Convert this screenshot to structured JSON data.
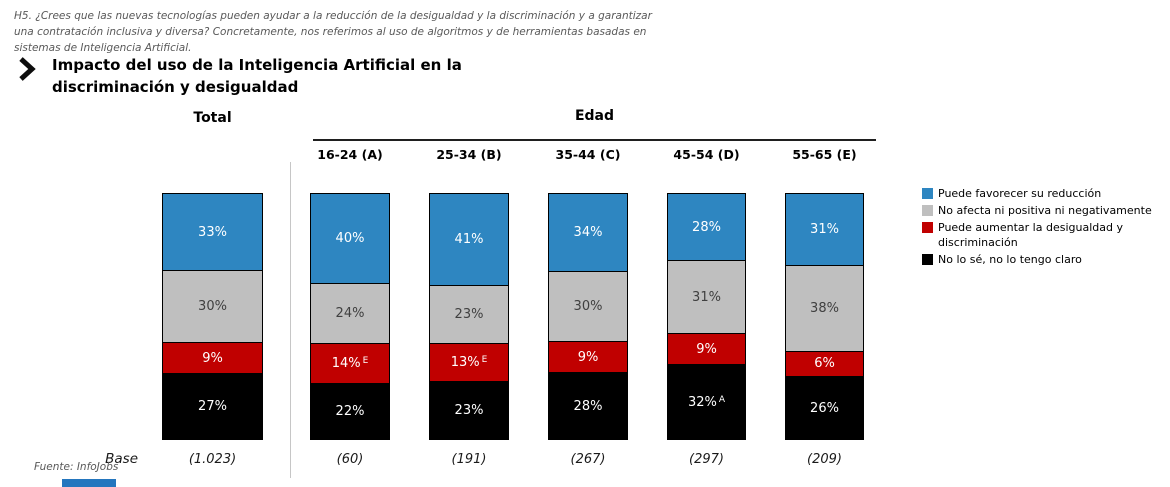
{
  "page": {
    "survey_note_lines": [
      "H5. ¿Crees que las nuevas tecnologías pueden ayudar a la reducción de la desigualdad y la discriminación y a garantizar",
      "una contratación inclusiva y diversa? Concretamente, nos referimos al uso de algoritmos y de herramientas basadas en",
      "sistemas de Inteligencia Artificial."
    ],
    "title_lines": [
      "Impacto del uso de la Inteligencia Artificial en la",
      "discriminación y desigualdad"
    ],
    "source": "Fuente: InfoJobs",
    "icons": {
      "title_marker": "chevron-right-icon"
    }
  },
  "chart_data": {
    "type": "bar",
    "variant": "100%-stacked-columns",
    "group_header": "Edad",
    "categories": [
      "Total",
      "16-24 (A)",
      "25-34 (B)",
      "35-44 (C)",
      "45-54 (D)",
      "55-65 (E)"
    ],
    "series": [
      {
        "name": "Puede favorecer su reducción",
        "color": "#2E86C1",
        "text_color": "#FFFFFF",
        "values": [
          33,
          40,
          41,
          34,
          28,
          31
        ],
        "superscripts": [
          "",
          "",
          "",
          "",
          "",
          ""
        ]
      },
      {
        "name": "No afecta ni positiva ni negativamente",
        "color": "#BFBFBF",
        "text_color": "#404040",
        "values": [
          30,
          24,
          23,
          30,
          31,
          38
        ],
        "superscripts": [
          "",
          "",
          "",
          "",
          "",
          ""
        ]
      },
      {
        "name": "Puede aumentar la desigualdad y discriminación",
        "color": "#C00000",
        "text_color": "#FFFFFF",
        "values": [
          9,
          14,
          13,
          9,
          9,
          6
        ],
        "superscripts": [
          "",
          "E",
          "E",
          "",
          "",
          ""
        ]
      },
      {
        "name": "No lo sé, no lo tengo claro",
        "color": "#000000",
        "text_color": "#FFFFFF",
        "values": [
          27,
          22,
          23,
          28,
          32,
          26
        ],
        "superscripts": [
          "",
          "",
          "",
          "",
          "A",
          ""
        ]
      }
    ],
    "base_row": {
      "label": "Base",
      "values": [
        "(1.023)",
        "(60)",
        "(191)",
        "(267)",
        "(297)",
        "(209)"
      ]
    },
    "value_suffix": "%",
    "ylim": [
      0,
      100
    ],
    "legend_position": "right",
    "grid": false
  }
}
